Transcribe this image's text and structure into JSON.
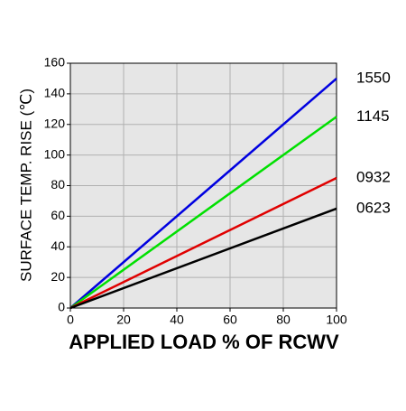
{
  "chart_data": {
    "type": "line",
    "x_label": "APPLIED LOAD % OF RCWV",
    "y_label": "SURFACE TEMP. RISE (℃)",
    "x": [
      0,
      100
    ],
    "series": [
      {
        "name": "1550",
        "color": "#0000e0",
        "values": [
          0,
          150
        ]
      },
      {
        "name": "1145",
        "color": "#00e000",
        "values": [
          0,
          125
        ]
      },
      {
        "name": "0932",
        "color": "#e00000",
        "values": [
          0,
          85
        ]
      },
      {
        "name": "0623",
        "color": "#000000",
        "values": [
          0,
          65
        ]
      }
    ],
    "xlim": [
      0,
      100
    ],
    "xticks": [
      0,
      20,
      40,
      60,
      80,
      100
    ],
    "ylim": [
      0,
      160
    ],
    "yticks": [
      0,
      20,
      40,
      60,
      80,
      100,
      120,
      140,
      160
    ],
    "grid": true
  }
}
